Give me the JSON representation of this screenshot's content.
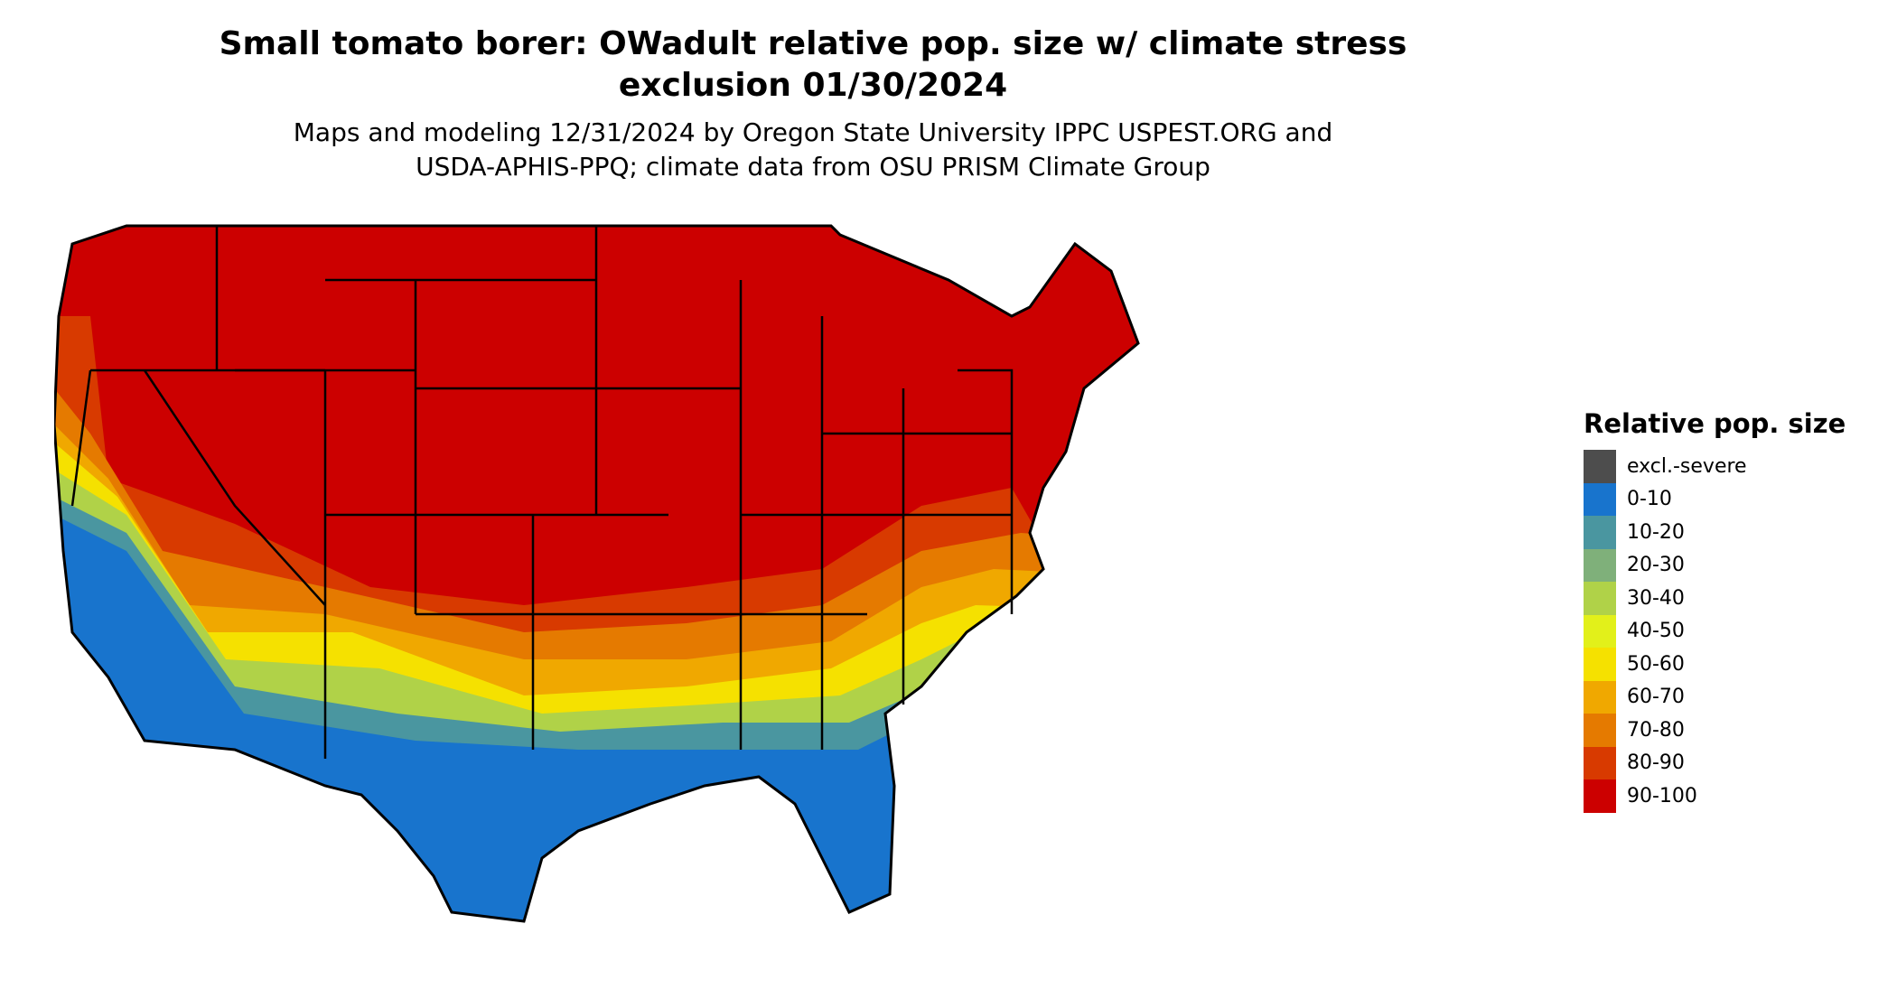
{
  "title_line1": "Small tomato borer: OWadult relative pop. size w/ climate stress",
  "title_line2": "exclusion 01/30/2024",
  "subtitle_line1": "Maps and modeling 12/31/2024 by Oregon State University IPPC USPEST.ORG and",
  "subtitle_line2": "USDA-APHIS-PPQ; climate data from OSU PRISM Climate Group",
  "legend": {
    "title": "Relative pop. size",
    "items": [
      {
        "label": "excl.-severe",
        "color": "#4d4d4d"
      },
      {
        "label": "0-10",
        "color": "#1874cd"
      },
      {
        "label": "10-20",
        "color": "#4a96a0"
      },
      {
        "label": "20-30",
        "color": "#7fb07a"
      },
      {
        "label": "30-40",
        "color": "#b0d248"
      },
      {
        "label": "40-50",
        "color": "#e2f01a"
      },
      {
        "label": "50-60",
        "color": "#f5e100"
      },
      {
        "label": "60-70",
        "color": "#f0a800"
      },
      {
        "label": "70-80",
        "color": "#e57a00"
      },
      {
        "label": "80-90",
        "color": "#d83a00"
      },
      {
        "label": "90-100",
        "color": "#cc0000"
      }
    ]
  }
}
